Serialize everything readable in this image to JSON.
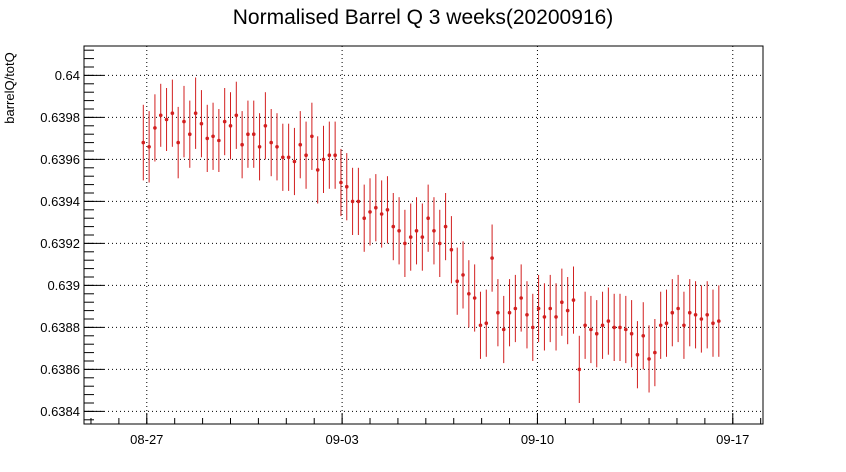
{
  "chart_data": {
    "type": "scatter",
    "title": "Normalised Barrel Q 3 weeks(20200916)",
    "xlabel": "",
    "ylabel": "barrelQ/totQ",
    "xlim": [
      "2020-08-24 18:00",
      "2020-09-18 02:00"
    ],
    "ylim": [
      0.63834,
      0.64014
    ],
    "x_ticks": [
      "08-27",
      "09-03",
      "09-10",
      "09-17"
    ],
    "x_tick_dates": [
      "2020-08-27",
      "2020-09-03",
      "2020-09-10",
      "2020-09-17"
    ],
    "y_ticks": [
      "0.6384",
      "0.6386",
      "0.6388",
      "0.639",
      "0.6392",
      "0.6394",
      "0.6396",
      "0.6398",
      "0.64"
    ],
    "y_tick_values": [
      0.6384,
      0.6386,
      0.6388,
      0.639,
      0.6392,
      0.6394,
      0.6396,
      0.6398,
      0.64
    ],
    "grid": true,
    "colors": {
      "series": "#d21f1f",
      "frame": "#000000",
      "grid": "#000000"
    },
    "series": [
      {
        "x": [
          "2020-08-26 21:00",
          "2020-08-27 02:00",
          "2020-08-27 07:00",
          "2020-08-27 12:00",
          "2020-08-27 17:00",
          "2020-08-27 22:00",
          "2020-08-28 03:00",
          "2020-08-28 08:00",
          "2020-08-28 13:00",
          "2020-08-28 18:00",
          "2020-08-28 23:00",
          "2020-08-29 04:00",
          "2020-08-29 09:00",
          "2020-08-29 14:00",
          "2020-08-29 19:00",
          "2020-08-30 00:00",
          "2020-08-30 05:00",
          "2020-08-30 10:00",
          "2020-08-30 15:00",
          "2020-08-30 20:00",
          "2020-08-31 01:00",
          "2020-08-31 06:00",
          "2020-08-31 11:00",
          "2020-08-31 16:00",
          "2020-08-31 21:00",
          "2020-09-01 02:00",
          "2020-09-01 07:00",
          "2020-09-01 12:00",
          "2020-09-01 17:00",
          "2020-09-01 22:00",
          "2020-09-02 03:00",
          "2020-09-02 08:00",
          "2020-09-02 13:00",
          "2020-09-02 18:00",
          "2020-09-02 23:00",
          "2020-09-03 04:00",
          "2020-09-03 09:00",
          "2020-09-03 14:00",
          "2020-09-03 19:00",
          "2020-09-04 00:00",
          "2020-09-04 05:00",
          "2020-09-04 10:00",
          "2020-09-04 15:00",
          "2020-09-04 20:00",
          "2020-09-05 01:00",
          "2020-09-05 06:00",
          "2020-09-05 11:00",
          "2020-09-05 16:00",
          "2020-09-05 21:00",
          "2020-09-06 02:00",
          "2020-09-06 07:00",
          "2020-09-06 12:00",
          "2020-09-06 17:00",
          "2020-09-06 22:00",
          "2020-09-07 03:00",
          "2020-09-07 08:00",
          "2020-09-07 13:00",
          "2020-09-07 18:00",
          "2020-09-07 23:00",
          "2020-09-08 04:00",
          "2020-09-08 09:00",
          "2020-09-08 14:00",
          "2020-09-08 19:00",
          "2020-09-09 00:00",
          "2020-09-09 05:00",
          "2020-09-09 10:00",
          "2020-09-09 15:00",
          "2020-09-09 20:00",
          "2020-09-10 01:00",
          "2020-09-10 06:00",
          "2020-09-10 11:00",
          "2020-09-10 16:00",
          "2020-09-10 21:00",
          "2020-09-11 02:00",
          "2020-09-11 07:00",
          "2020-09-11 12:00",
          "2020-09-11 17:00",
          "2020-09-11 22:00",
          "2020-09-12 03:00",
          "2020-09-12 08:00",
          "2020-09-12 13:00",
          "2020-09-12 18:00",
          "2020-09-12 23:00",
          "2020-09-13 04:00",
          "2020-09-13 09:00",
          "2020-09-13 14:00",
          "2020-09-13 19:00",
          "2020-09-14 00:00",
          "2020-09-14 05:00",
          "2020-09-14 10:00",
          "2020-09-14 15:00",
          "2020-09-14 20:00",
          "2020-09-15 01:00",
          "2020-09-15 06:00",
          "2020-09-15 11:00",
          "2020-09-15 16:00",
          "2020-09-15 21:00",
          "2020-09-16 02:00",
          "2020-09-16 07:00",
          "2020-09-16 12:00"
        ],
        "y": [
          0.63968,
          0.63966,
          0.63975,
          0.63981,
          0.63979,
          0.63982,
          0.63968,
          0.63978,
          0.63972,
          0.63982,
          0.63977,
          0.6397,
          0.63971,
          0.63969,
          0.63978,
          0.63976,
          0.63981,
          0.63967,
          0.63972,
          0.63972,
          0.63966,
          0.63976,
          0.63968,
          0.63966,
          0.63961,
          0.63961,
          0.63959,
          0.63967,
          0.63962,
          0.63971,
          0.63955,
          0.6396,
          0.63962,
          0.63962,
          0.63949,
          0.63947,
          0.6394,
          0.6394,
          0.63932,
          0.63935,
          0.63937,
          0.63934,
          0.63936,
          0.63928,
          0.63926,
          0.6392,
          0.63923,
          0.63926,
          0.63923,
          0.63932,
          0.63926,
          0.6392,
          0.63928,
          0.63917,
          0.63902,
          0.63905,
          0.63896,
          0.63894,
          0.63881,
          0.63882,
          0.63913,
          0.63887,
          0.63879,
          0.63887,
          0.63889,
          0.63894,
          0.63886,
          0.6388,
          0.63889,
          0.63885,
          0.63889,
          0.63885,
          0.63892,
          0.63888,
          0.63893,
          0.6386,
          0.63881,
          0.63879,
          0.63877,
          0.63881,
          0.63883,
          0.6388,
          0.6388,
          0.63879,
          0.63877,
          0.63867,
          0.63876,
          0.63865,
          0.63868,
          0.63881,
          0.63882,
          0.63887,
          0.63889,
          0.63881,
          0.63887,
          0.63886,
          0.63884,
          0.63886,
          0.63882,
          0.63883
        ],
        "err": [
          0.00018,
          0.00017,
          0.00016,
          0.00015,
          0.00015,
          0.00016,
          0.00017,
          0.00017,
          0.00016,
          0.00017,
          0.00016,
          0.00016,
          0.00016,
          0.00015,
          0.00016,
          0.00016,
          0.00016,
          0.00016,
          0.00016,
          0.00016,
          0.00016,
          0.00016,
          0.00016,
          0.00016,
          0.00016,
          0.00016,
          0.00016,
          0.00016,
          0.00016,
          0.00016,
          0.00016,
          0.00016,
          0.00016,
          0.00016,
          0.00016,
          0.00016,
          0.00016,
          0.00016,
          0.00016,
          0.00016,
          0.00016,
          0.00016,
          0.00016,
          0.00016,
          0.00016,
          0.00016,
          0.00016,
          0.00016,
          0.00016,
          0.00016,
          0.00016,
          0.00016,
          0.00016,
          0.00016,
          0.00016,
          0.00016,
          0.00016,
          0.00016,
          0.00016,
          0.00016,
          0.00016,
          0.00016,
          0.00016,
          0.00016,
          0.00016,
          0.00016,
          0.00016,
          0.00016,
          0.00016,
          0.00016,
          0.00016,
          0.00016,
          0.00016,
          0.00016,
          0.00016,
          0.00016,
          0.00016,
          0.00016,
          0.00016,
          0.00016,
          0.00016,
          0.00016,
          0.00016,
          0.00016,
          0.00016,
          0.00016,
          0.00016,
          0.00016,
          0.00016,
          0.00016,
          0.00016,
          0.00016,
          0.00016,
          0.00016,
          0.00016,
          0.00016,
          0.00016,
          0.00016,
          0.00016,
          0.00017
        ]
      }
    ]
  }
}
